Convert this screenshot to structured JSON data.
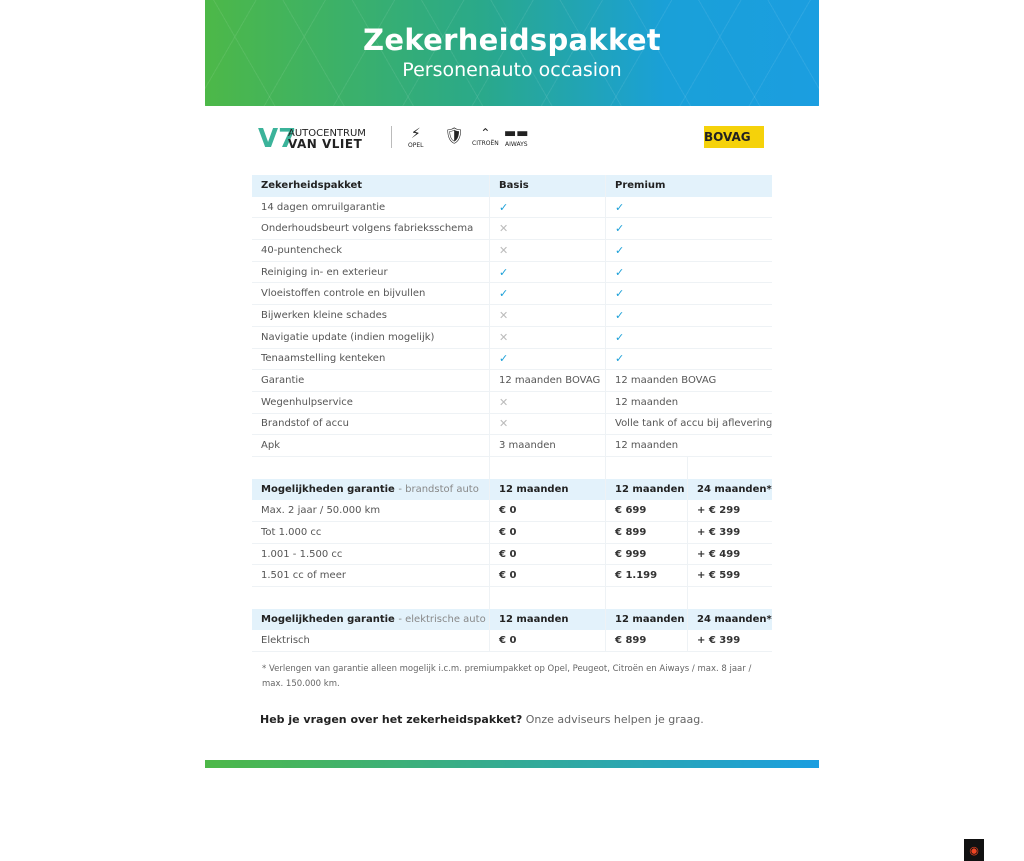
{
  "header": {
    "title": "Zekerheidspakket",
    "subtitle": "Personenauto occasion"
  },
  "logos": {
    "dealer_line1": "AUTOCENTRUM",
    "dealer_line2": "VAN VLIET",
    "brands": [
      "OPEL",
      "PEUGEOT",
      "CITROËN",
      "AIWAYS"
    ],
    "bovag": "BOVAG"
  },
  "colors": {
    "check": "#1ca0d8",
    "cross": "#bbbbbb",
    "header_row": "#e3f2fb",
    "gradient_start": "#4db848",
    "gradient_end": "#1b9ee0"
  },
  "package_table": {
    "headers": [
      "Zekerheidspakket",
      "Basis",
      "Premium"
    ],
    "rows": [
      [
        "14 dagen omruilgarantie",
        "check",
        "check"
      ],
      [
        "Onderhoudsbeurt volgens fabrieksschema",
        "cross",
        "check"
      ],
      [
        "40-puntencheck",
        "cross",
        "check"
      ],
      [
        "Reiniging in- en exterieur",
        "check",
        "check"
      ],
      [
        "Vloeistoffen controle en bijvullen",
        "check",
        "check"
      ],
      [
        "Bijwerken kleine schades",
        "cross",
        "check"
      ],
      [
        "Navigatie update (indien mogelijk)",
        "cross",
        "check"
      ],
      [
        "Tenaamstelling kenteken",
        "check",
        "check"
      ],
      [
        "Garantie",
        "12 maanden BOVAG",
        "12 maanden BOVAG"
      ],
      [
        "Wegenhulpservice",
        "cross",
        "12 maanden"
      ],
      [
        "Brandstof of accu",
        "cross",
        "Volle tank of accu bij aflevering"
      ],
      [
        "Apk",
        "3 maanden",
        "12 maanden"
      ]
    ]
  },
  "fuel_table": {
    "headers": [
      "Mogelijkheden garantie",
      "- brandstof auto",
      "12 maanden",
      "12 maanden",
      "24 maanden*"
    ],
    "rows": [
      [
        "Max. 2 jaar / 50.000 km",
        "€ 0",
        "€ 699",
        "+ € 299"
      ],
      [
        "Tot 1.000 cc",
        "€ 0",
        "€ 899",
        "+ € 399"
      ],
      [
        "1.001 - 1.500 cc",
        "€ 0",
        "€ 999",
        "+ € 499"
      ],
      [
        "1.501 cc of meer",
        "€ 0",
        "€ 1.199",
        "+ € 599"
      ]
    ]
  },
  "electric_table": {
    "headers": [
      "Mogelijkheden garantie",
      "- elektrische auto",
      "12 maanden",
      "12 maanden",
      "24 maanden*"
    ],
    "rows": [
      [
        "Elektrisch",
        "€ 0",
        "€ 899",
        "+ € 399"
      ]
    ]
  },
  "footnote": "* Verlengen van garantie alleen mogelijk i.c.m. premiumpakket op Opel, Peugeot, Citroën en Aiways / max. 8 jaar / max. 150.000 km.",
  "question": {
    "bold": "Heb je vragen over het zekerheidspakket?",
    "text": " Onze adviseurs helpen je graag."
  }
}
